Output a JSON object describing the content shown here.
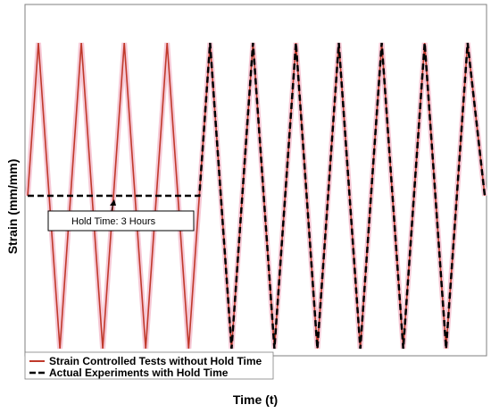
{
  "chart_data": {
    "type": "line",
    "title": "",
    "xlabel": "Time (t)",
    "ylabel": "Strain (mm/mm)",
    "x_ticks_shown": false,
    "y_ticks_shown": false,
    "grid": false,
    "legend_placement": "bottom-left",
    "annotation": {
      "text": "Hold Time: 3 Hours",
      "arrow": true
    },
    "series": [
      {
        "name": "Strain Controlled Tests without Hold Time",
        "color": "#c0392b",
        "style": "solid",
        "x": [
          0,
          0.5,
          1.5,
          2.5,
          3.5,
          4.5,
          5.5,
          6.5,
          7.5,
          8.5,
          9.5,
          10.5,
          11.5,
          12.5,
          13.5,
          14.5,
          15.5,
          16.5,
          17.5,
          18.5,
          19.5,
          20.5,
          21.3
        ],
        "y": [
          0,
          1,
          -1,
          1,
          -1,
          1,
          -1,
          1,
          -1,
          1,
          -1,
          1,
          -1,
          1,
          -1,
          1,
          -1,
          1,
          -1,
          1,
          -1,
          1,
          0
        ]
      },
      {
        "name": "Actual Experiments with Hold Time",
        "color": "#000000",
        "style": "dashed",
        "x": [
          0,
          8.0,
          8.5,
          9.5,
          10.5,
          11.5,
          12.5,
          13.5,
          14.5,
          15.5,
          16.5,
          17.5,
          18.5,
          19.5,
          20.5,
          21.3
        ],
        "y": [
          0,
          0,
          1,
          -1,
          1,
          -1,
          1,
          -1,
          1,
          -1,
          1,
          -1,
          1,
          -1,
          1,
          0
        ]
      }
    ],
    "xlim": [
      0,
      21.3
    ],
    "ylim": [
      -1.05,
      1.05
    ]
  }
}
